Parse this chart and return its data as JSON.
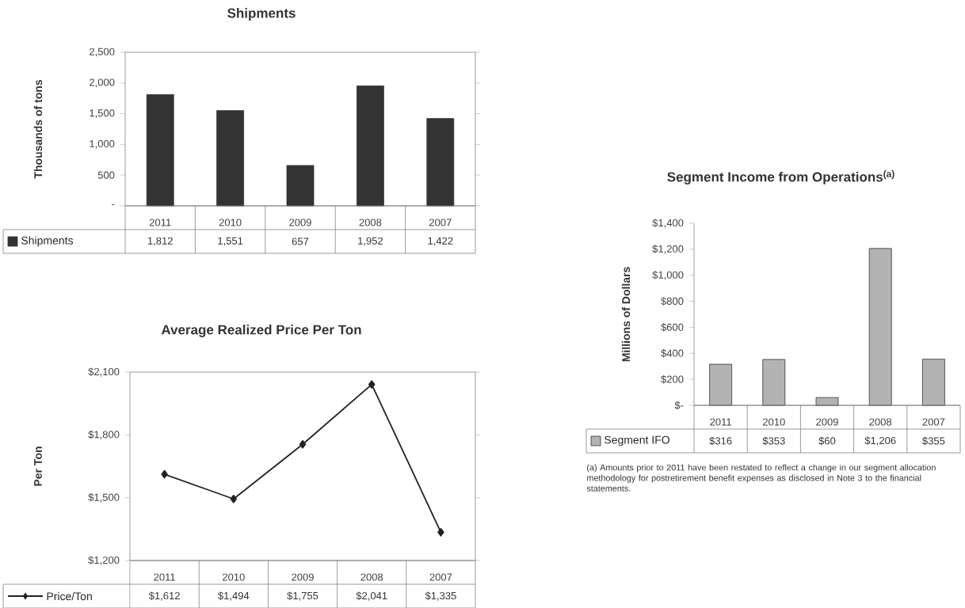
{
  "chart_data": [
    {
      "type": "bar",
      "title": "Shipments",
      "ylabel": "Thousands of tons",
      "categories": [
        "2011",
        "2010",
        "2009",
        "2008",
        "2007"
      ],
      "series": [
        {
          "name": "Shipments",
          "color": "#333333",
          "values": [
            1812,
            1551,
            657,
            1952,
            1422
          ],
          "value_labels": [
            "1,812",
            "1,551",
            "657",
            "1,952",
            "1,422"
          ]
        }
      ],
      "ylim": [
        0,
        2500
      ],
      "yticks": [
        {
          "value": 0,
          "label": "-"
        },
        {
          "value": 500,
          "label": "500"
        },
        {
          "value": 1000,
          "label": "1,000"
        },
        {
          "value": 1500,
          "label": "1,500"
        },
        {
          "value": 2000,
          "label": "2,000"
        },
        {
          "value": 2500,
          "label": "2,500"
        }
      ],
      "legend": "bottom",
      "grid": false
    },
    {
      "type": "line",
      "title": "Average Realized Price Per Ton",
      "ylabel": "Per Ton",
      "categories": [
        "2011",
        "2010",
        "2009",
        "2008",
        "2007"
      ],
      "series": [
        {
          "name": "Price/Ton",
          "color": "#222222",
          "values": [
            1612,
            1494,
            1755,
            2041,
            1335
          ],
          "value_labels": [
            "$1,612",
            "$1,494",
            "$1,755",
            "$2,041",
            "$1,335"
          ]
        }
      ],
      "ylim": [
        1200,
        2100
      ],
      "yticks": [
        {
          "value": 1200,
          "label": "$1,200"
        },
        {
          "value": 1500,
          "label": "$1,500"
        },
        {
          "value": 1800,
          "label": "$1,800"
        },
        {
          "value": 2100,
          "label": "$2,100"
        }
      ],
      "marker": "diamond",
      "line_style": "solid",
      "legend": "bottom",
      "grid": false
    },
    {
      "type": "bar",
      "title": "Segment Income from Operations$^{(a)}$",
      "ylabel": "Millions of Dollars",
      "categories": [
        "2011",
        "2010",
        "2009",
        "2008",
        "2007"
      ],
      "series": [
        {
          "name": "Segment IFO",
          "color": "#b3b3b3",
          "values": [
            316,
            353,
            60,
            1206,
            355
          ],
          "value_labels": [
            "$316",
            "$353",
            "$60",
            "$1,206",
            "$355"
          ]
        }
      ],
      "ylim": [
        0,
        1400
      ],
      "yticks": [
        {
          "value": 0,
          "label": "$-"
        },
        {
          "value": 200,
          "label": "$200"
        },
        {
          "value": 400,
          "label": "$400"
        },
        {
          "value": 600,
          "label": "$600"
        },
        {
          "value": 800,
          "label": "$800"
        },
        {
          "value": 1000,
          "label": "$1,000"
        },
        {
          "value": 1200,
          "label": "$1,200"
        },
        {
          "value": 1400,
          "label": "$1,400"
        }
      ],
      "legend": "bottom",
      "grid": false,
      "annotations": [
        "(a) Amounts prior to 2011 have been restated to reflect a change in our segment allocation methodology for postretirement benefit expenses as disclosed in Note 3 to the financial statements."
      ]
    }
  ]
}
